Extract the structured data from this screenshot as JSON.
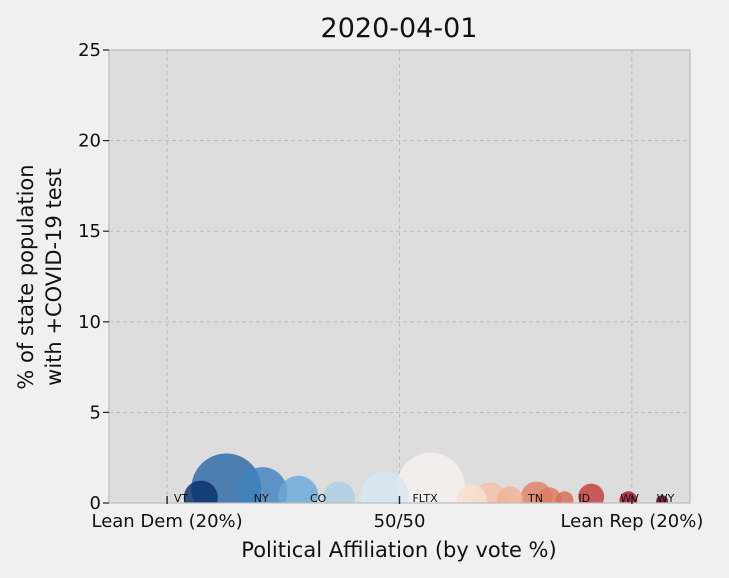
{
  "chart_data": {
    "type": "scatter",
    "title": "2020-04-01",
    "xlabel": "Political Affiliation (by vote %)",
    "ylabel_lines": [
      "% of state population",
      "with +COVID-19 test"
    ],
    "xlim": [
      -25,
      25
    ],
    "ylim": [
      0,
      25
    ],
    "x_ticks": [
      {
        "value": -20,
        "label": "Lean Dem (20%)"
      },
      {
        "value": 0,
        "label": "50/50"
      },
      {
        "value": 20,
        "label": "Lean Rep (20%)"
      }
    ],
    "y_ticks": [
      0,
      5,
      10,
      15,
      20,
      25
    ],
    "grid": true,
    "points": [
      {
        "x": -17.1,
        "y": 0.3,
        "size": 17,
        "color": "#08306b"
      },
      {
        "x": -14.9,
        "y": 0.8,
        "size": 35,
        "color": "#2c69a8"
      },
      {
        "x": -11.8,
        "y": 0.6,
        "size": 25,
        "color": "#3f82bf"
      },
      {
        "x": -8.7,
        "y": 0.4,
        "size": 20,
        "color": "#6aaad8"
      },
      {
        "x": -5.2,
        "y": 0.3,
        "size": 16,
        "color": "#a9cfe5"
      },
      {
        "x": -1.3,
        "y": 0.4,
        "size": 24,
        "color": "#d7e6f2"
      },
      {
        "x": 2.7,
        "y": 0.9,
        "size": 34,
        "color": "#f5f2f0"
      },
      {
        "x": 6.2,
        "y": 0.2,
        "size": 15,
        "color": "#fbe0d0"
      },
      {
        "x": 7.8,
        "y": 0.2,
        "size": 17,
        "color": "#f5c2a8"
      },
      {
        "x": 9.5,
        "y": 0.2,
        "size": 13,
        "color": "#f0b394"
      },
      {
        "x": 11.8,
        "y": 0.3,
        "size": 16,
        "color": "#e08367"
      },
      {
        "x": 12.9,
        "y": 0.2,
        "size": 12,
        "color": "#de7a60"
      },
      {
        "x": 14.2,
        "y": 0.15,
        "size": 9,
        "color": "#d86a55"
      },
      {
        "x": 16.5,
        "y": 0.35,
        "size": 13,
        "color": "#c43a3a"
      },
      {
        "x": 19.7,
        "y": 0.15,
        "size": 9,
        "color": "#a8162b"
      },
      {
        "x": 22.6,
        "y": 0.1,
        "size": 6,
        "color": "#67001f"
      }
    ],
    "state_labels": [
      {
        "text": "VT",
        "x": -18.8
      },
      {
        "text": "NY",
        "x": -11.9
      },
      {
        "text": "CO",
        "x": -7.0
      },
      {
        "text": "FLTX",
        "x": 2.2
      },
      {
        "text": "TN",
        "x": 11.7
      },
      {
        "text": "ID",
        "x": 15.9
      },
      {
        "text": "WV",
        "x": 19.8
      },
      {
        "text": "WY",
        "x": 22.9
      }
    ]
  }
}
